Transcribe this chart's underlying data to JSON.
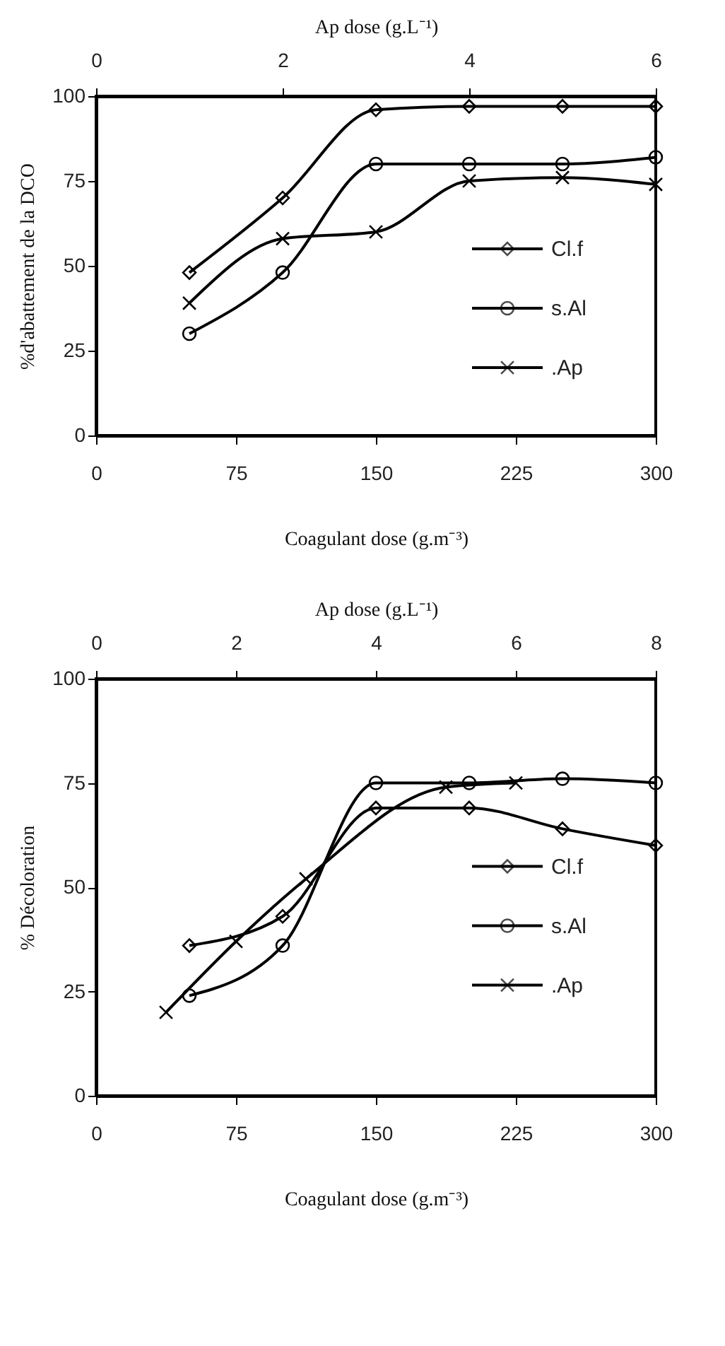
{
  "chart_data": [
    {
      "type": "line",
      "xlabel": "Coagulant dose (g.m⁻³)",
      "ylabel": "%d'abattement de la DCO",
      "x2label": "Ap dose (g.L⁻¹)",
      "xlim": [
        0,
        300
      ],
      "xticks": [
        0,
        75,
        150,
        225,
        300
      ],
      "x2lim": [
        0,
        6
      ],
      "x2ticks": [
        0,
        2,
        4,
        6
      ],
      "ylim": [
        0,
        100
      ],
      "yticks": [
        0,
        25,
        50,
        75,
        100
      ],
      "grid": false,
      "legend": "right",
      "line_style": "solid",
      "series": [
        {
          "name": "Cl.f",
          "color": "#000000",
          "marker": "diamond",
          "x": [
            50,
            100,
            150,
            200,
            250,
            300
          ],
          "values": [
            48,
            70,
            96,
            97,
            97,
            97
          ]
        },
        {
          "name": "s.Al",
          "color": "#000000",
          "marker": "circle",
          "x": [
            50,
            100,
            150,
            200,
            250,
            300
          ],
          "values": [
            30,
            48,
            80,
            80,
            80,
            82
          ]
        },
        {
          "name": ".Ap",
          "color": "#000000",
          "marker": "cross",
          "axis": "x2",
          "x": [
            1,
            2,
            3,
            4,
            5,
            6
          ],
          "values": [
            39,
            58,
            60,
            75,
            76,
            74
          ]
        }
      ]
    },
    {
      "type": "line",
      "xlabel": "Coagulant dose (g.m⁻³)",
      "ylabel": "% Décoloration",
      "x2label": "Ap dose (g.L⁻¹)",
      "xlim": [
        0,
        300
      ],
      "xticks": [
        0,
        75,
        150,
        225,
        300
      ],
      "x2lim": [
        0,
        8
      ],
      "x2ticks": [
        0,
        2,
        4,
        6,
        8
      ],
      "ylim": [
        0,
        100
      ],
      "yticks": [
        0,
        25,
        50,
        75,
        100
      ],
      "grid": false,
      "legend": "right",
      "line_style": "solid",
      "series": [
        {
          "name": "Cl.f",
          "color": "#000000",
          "marker": "diamond",
          "x": [
            50,
            100,
            150,
            200,
            250,
            300
          ],
          "values": [
            36,
            43,
            69,
            69,
            64,
            60
          ]
        },
        {
          "name": "s.Al",
          "color": "#000000",
          "marker": "circle",
          "x": [
            50,
            100,
            150,
            200,
            250,
            300
          ],
          "values": [
            24,
            36,
            75,
            75,
            76,
            75
          ]
        },
        {
          "name": ".Ap",
          "color": "#000000",
          "marker": "cross",
          "axis": "x2",
          "x": [
            1,
            2,
            3,
            5,
            6
          ],
          "values": [
            20,
            37,
            52,
            74,
            75
          ]
        }
      ]
    }
  ]
}
